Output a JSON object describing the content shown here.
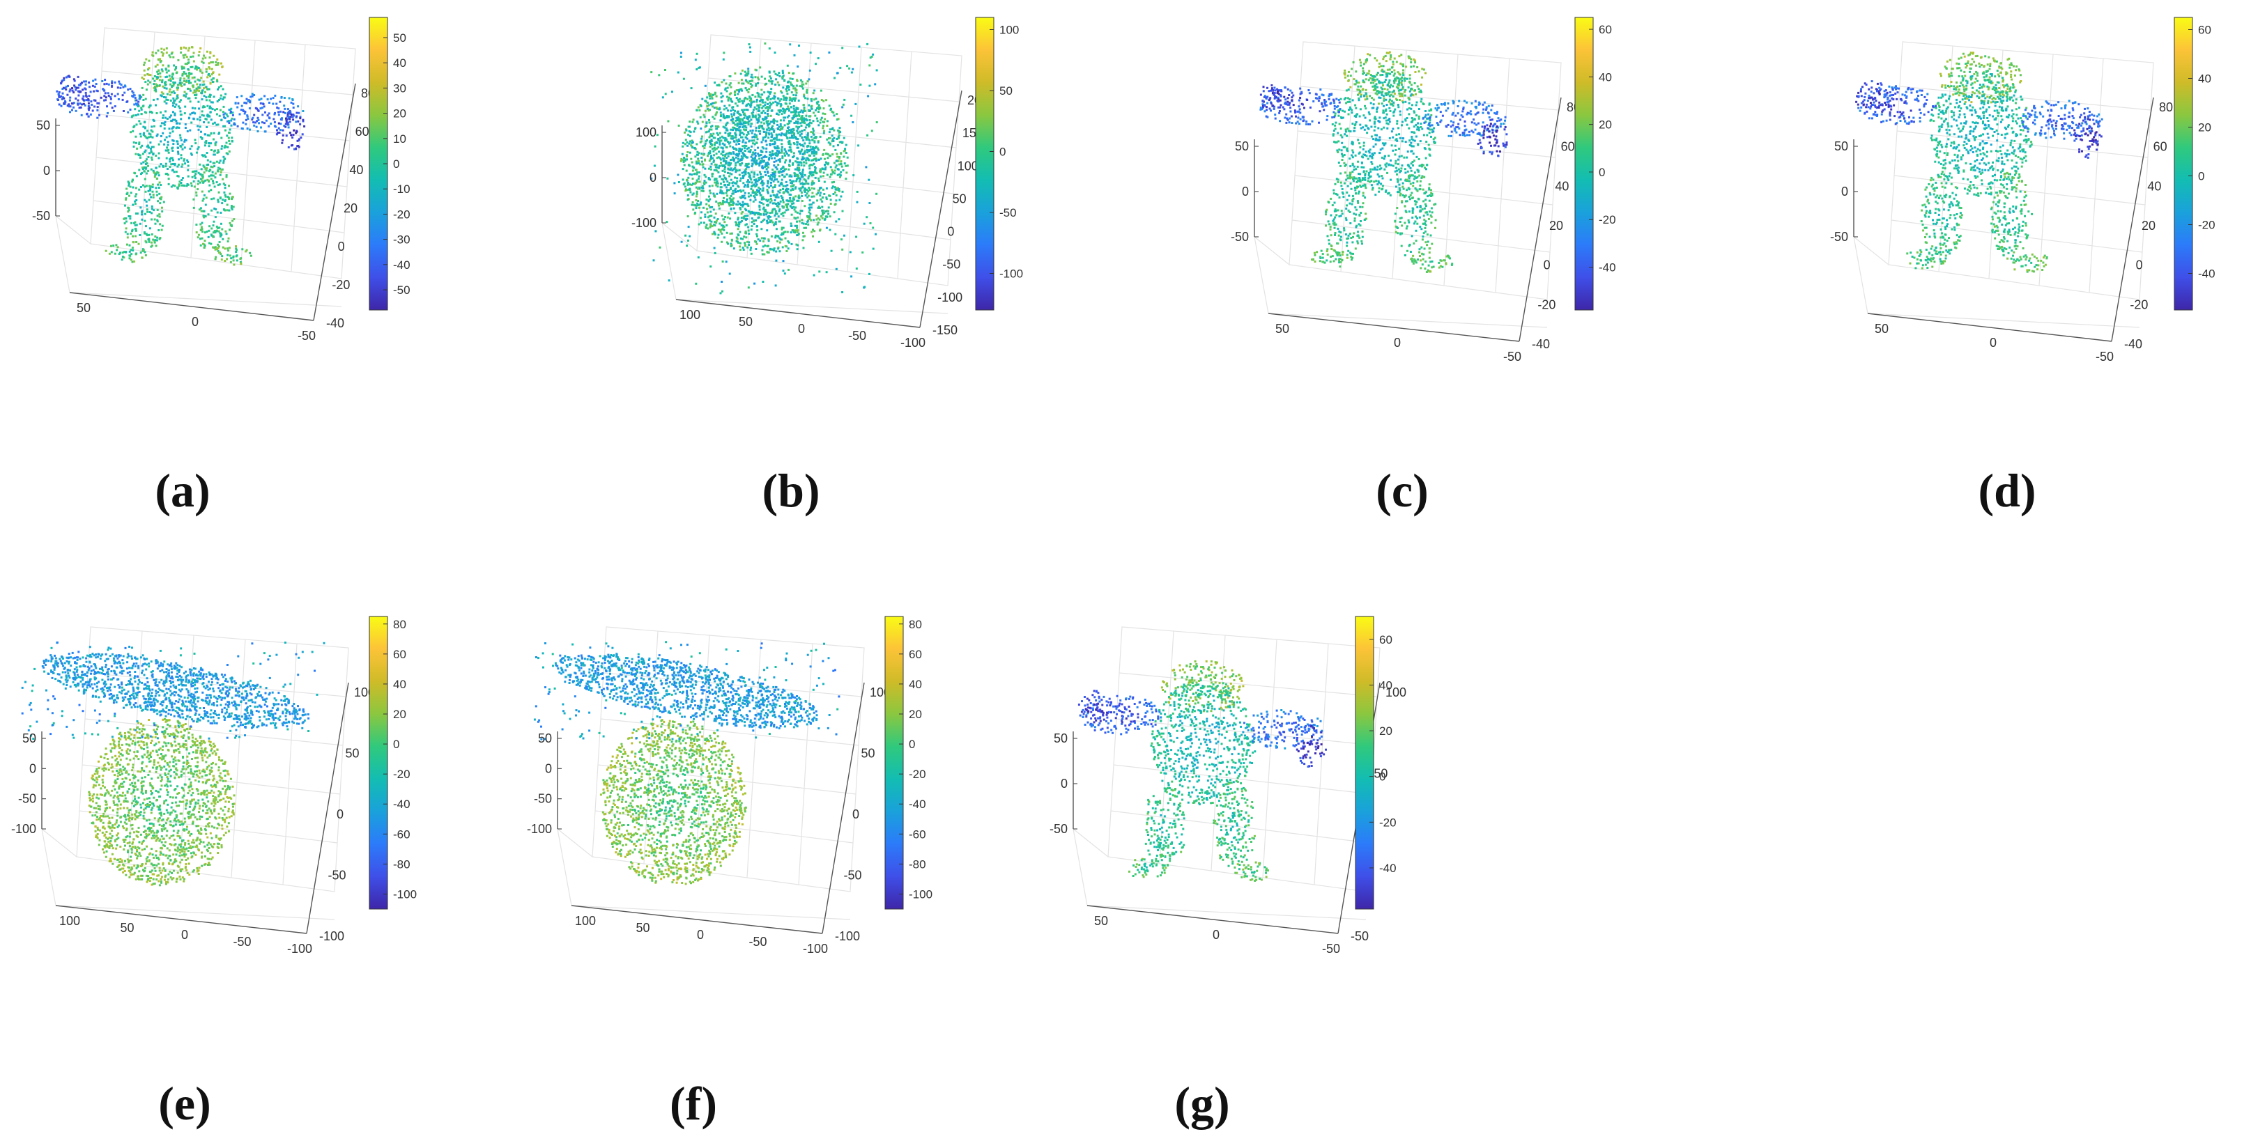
{
  "colormap": [
    "#3e26a8",
    "#3f4fe8",
    "#2c7bfa",
    "#1aa1db",
    "#13bdb2",
    "#30c97d",
    "#8bc740",
    "#cfbb28",
    "#fcc338",
    "#f9fb15"
  ],
  "chart_data": [
    {
      "id": "a",
      "type": "scatter3d",
      "caption": "(a)",
      "shape": "figure",
      "value_range": [
        -58,
        58
      ],
      "colorbar_ticks": [
        "50",
        "40",
        "30",
        "20",
        "10",
        "0",
        "-10",
        "-20",
        "-30",
        "-40",
        "-50"
      ],
      "left_axis_ticks": [
        "50",
        "0",
        "-50"
      ],
      "bottom_axis_ticks": [
        "50",
        "0",
        "-50"
      ],
      "right_axis_ticks": [
        "80",
        "60",
        "40",
        "20",
        "0",
        "-20",
        "-40"
      ]
    },
    {
      "id": "b",
      "type": "scatter3d",
      "caption": "(b)",
      "shape": "blob",
      "value_range": [
        -130,
        110
      ],
      "colorbar_ticks": [
        "100",
        "50",
        "0",
        "-50",
        "-100"
      ],
      "left_axis_ticks": [
        "100",
        "0",
        "-100"
      ],
      "bottom_axis_ticks": [
        "100",
        "50",
        "0",
        "-50",
        "-100"
      ],
      "right_axis_ticks": [
        "200",
        "150",
        "100",
        "50",
        "0",
        "-50",
        "-100",
        "-150"
      ]
    },
    {
      "id": "c",
      "type": "scatter3d",
      "caption": "(c)",
      "shape": "figure",
      "value_range": [
        -58,
        65
      ],
      "colorbar_ticks": [
        "60",
        "40",
        "20",
        "0",
        "-20",
        "-40"
      ],
      "left_axis_ticks": [
        "50",
        "0",
        "-50"
      ],
      "bottom_axis_ticks": [
        "50",
        "0",
        "-50"
      ],
      "right_axis_ticks": [
        "80",
        "60",
        "40",
        "20",
        "0",
        "-20",
        "-40"
      ]
    },
    {
      "id": "d",
      "type": "scatter3d",
      "caption": "(d)",
      "shape": "figure",
      "value_range": [
        -55,
        65
      ],
      "colorbar_ticks": [
        "60",
        "40",
        "20",
        "0",
        "-20",
        "-40"
      ],
      "left_axis_ticks": [
        "50",
        "0",
        "-50"
      ],
      "bottom_axis_ticks": [
        "50",
        "0",
        "-50"
      ],
      "right_axis_ticks": [
        "80",
        "60",
        "40",
        "20",
        "0",
        "-20",
        "-40"
      ]
    },
    {
      "id": "e",
      "type": "scatter3d",
      "caption": "(e)",
      "shape": "split",
      "value_range": [
        -110,
        85
      ],
      "colorbar_ticks": [
        "80",
        "60",
        "40",
        "20",
        "0",
        "-20",
        "-40",
        "-60",
        "-80",
        "-100"
      ],
      "left_axis_ticks": [
        "50",
        "0",
        "-50",
        "-100"
      ],
      "bottom_axis_ticks": [
        "100",
        "50",
        "0",
        "-50",
        "-100"
      ],
      "right_axis_ticks": [
        "100",
        "50",
        "0",
        "-50",
        "-100"
      ]
    },
    {
      "id": "f",
      "type": "scatter3d",
      "caption": "(f)",
      "shape": "split",
      "value_range": [
        -110,
        85
      ],
      "colorbar_ticks": [
        "80",
        "60",
        "40",
        "20",
        "0",
        "-20",
        "-40",
        "-60",
        "-80",
        "-100"
      ],
      "left_axis_ticks": [
        "50",
        "0",
        "-50",
        "-100"
      ],
      "bottom_axis_ticks": [
        "100",
        "50",
        "0",
        "-50",
        "-100"
      ],
      "right_axis_ticks": [
        "100",
        "50",
        "0",
        "-50",
        "-100"
      ]
    },
    {
      "id": "g",
      "type": "scatter3d",
      "caption": "(g)",
      "shape": "figure",
      "value_range": [
        -58,
        70
      ],
      "colorbar_ticks": [
        "60",
        "40",
        "20",
        "0",
        "-20",
        "-40"
      ],
      "left_axis_ticks": [
        "50",
        "0",
        "-50"
      ],
      "bottom_axis_ticks": [
        "50",
        "0",
        "-50"
      ],
      "right_axis_ticks": [
        "100",
        "50",
        "0",
        "-50"
      ]
    }
  ]
}
